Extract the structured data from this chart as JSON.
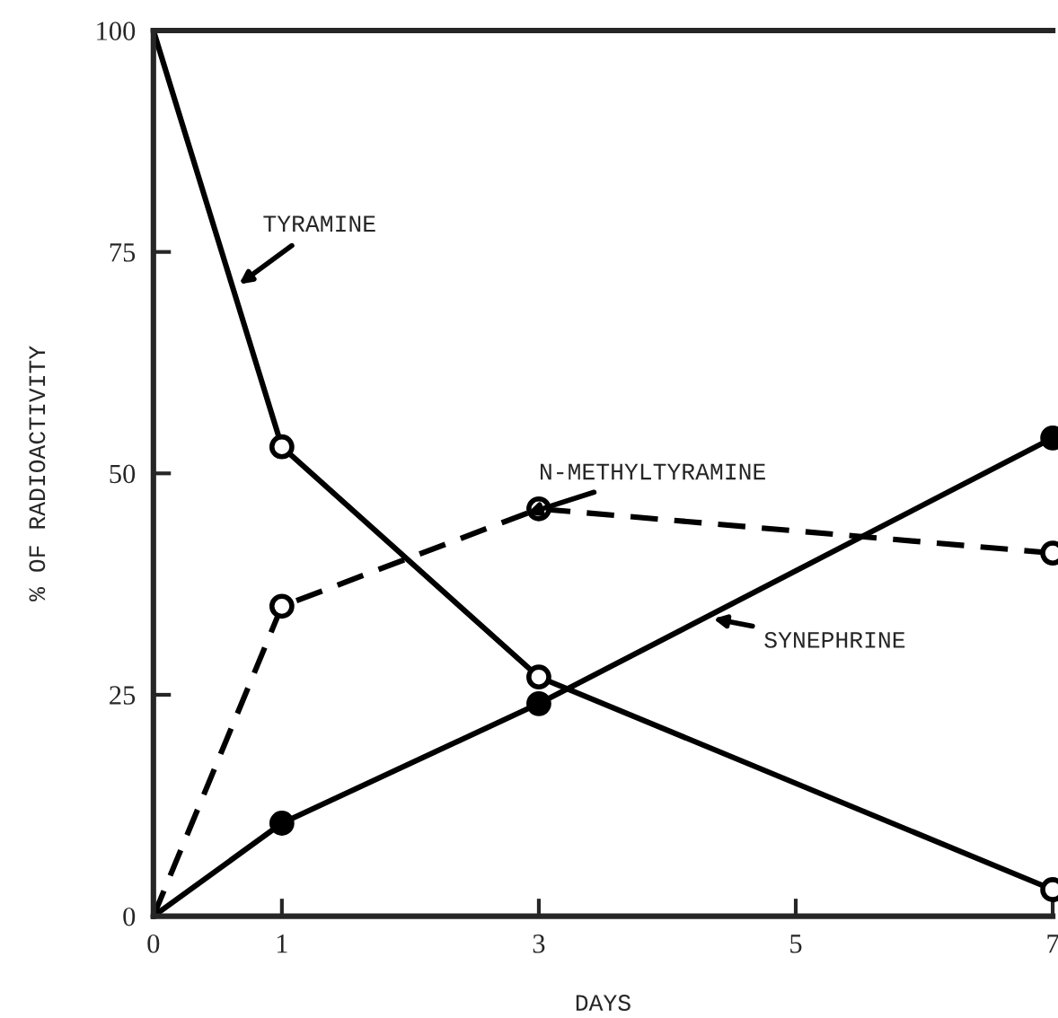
{
  "chart_data": {
    "type": "line",
    "xlabel": "DAYS",
    "ylabel": "% OF RADIOACTIVITY",
    "x": [
      0,
      1,
      3,
      7
    ],
    "series": [
      {
        "name": "TYRAMINE",
        "color": "#000000",
        "values": [
          100,
          53,
          27,
          3
        ],
        "line_style": "solid"
      },
      {
        "name": "N-METHYLTYRAMINE",
        "color": "#000000",
        "values": [
          0,
          35,
          46,
          41
        ],
        "line_style": "dashed"
      },
      {
        "name": "SYNEPHRINE",
        "color": "#000000",
        "values": [
          0,
          10.5,
          24,
          54
        ],
        "line_style": "solid"
      }
    ],
    "xlim": [
      0,
      7
    ],
    "xticks": [
      0,
      1,
      3,
      5,
      7
    ],
    "ylim": [
      0,
      100
    ],
    "yticks": [
      0,
      25,
      50,
      75,
      100
    ],
    "marker": "circle",
    "grid": false
  }
}
